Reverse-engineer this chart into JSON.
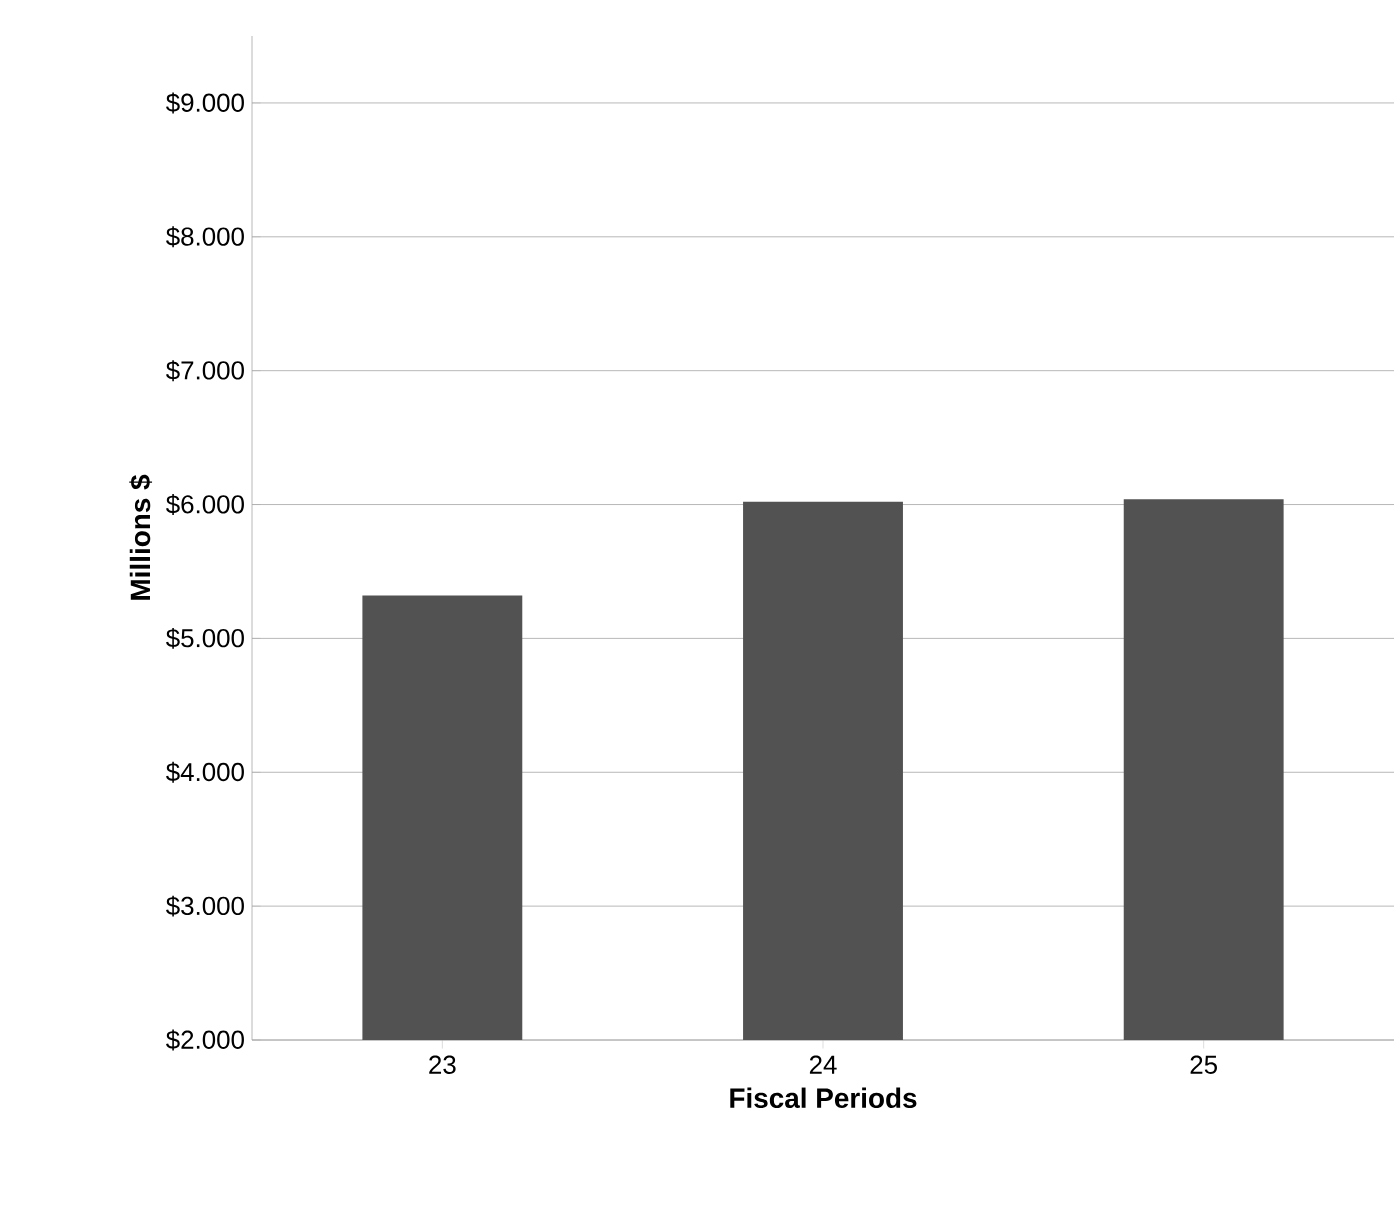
{
  "chart_data": {
    "type": "bar",
    "xlabel": "Fiscal Periods",
    "ylabel": "Millions $",
    "categories": [
      "23",
      "24",
      "25"
    ],
    "values": [
      5.32,
      6.02,
      6.04
    ],
    "color": "#525252",
    "ylim": [
      2,
      9.5
    ],
    "yticks": [
      {
        "value": 2,
        "label": "$2.000"
      },
      {
        "value": 3,
        "label": "$3.000"
      },
      {
        "value": 4,
        "label": "$4.000"
      },
      {
        "value": 5,
        "label": "$5.000"
      },
      {
        "value": 6,
        "label": "$6.000"
      },
      {
        "value": 7,
        "label": "$7.000"
      },
      {
        "value": 8,
        "label": "$8.000"
      },
      {
        "value": 9,
        "label": "$9.000"
      }
    ],
    "grid": "y"
  }
}
